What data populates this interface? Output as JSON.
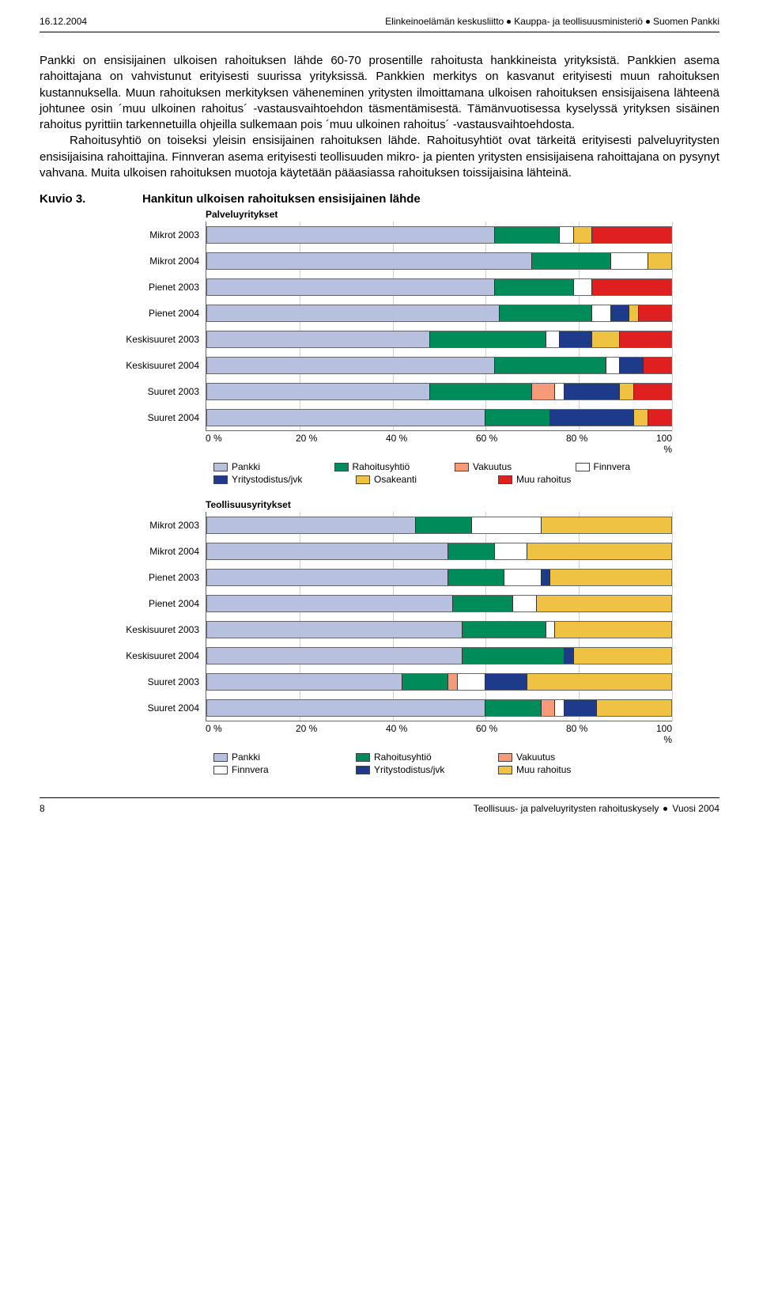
{
  "header": {
    "date": "16.12.2004",
    "orgs": [
      "Elinkeinoelämän keskusliitto",
      "Kauppa- ja teollisuusministeriö",
      "Suomen Pankki"
    ]
  },
  "body": {
    "p1": "Pankki on ensisijainen ulkoisen rahoituksen lähde 60-70 prosentille rahoitusta hankkineista yrityksistä. Pankkien asema rahoittajana on vahvistunut erityisesti suurissa yrityksissä. Pankkien merkitys on kasvanut erityisesti muun rahoituksen kustannuksella. Muun rahoituksen merkityksen väheneminen yritysten ilmoittamana ulkoisen rahoituksen ensisijaisena lähteenä johtunee osin ´muu ulkoinen rahoitus´ -vastausvaihtoehdon täsmentämisestä. Tämänvuotisessa kyselyssä yrityksen sisäinen rahoitus pyrittiin tarkennetuilla ohjeilla sulkemaan pois ´muu ulkoinen rahoitus´ -vastausvaihtoehdosta.",
    "p2": "Rahoitusyhtiö on toiseksi yleisin ensisijainen rahoituksen lähde. Rahoitusyhtiöt ovat tärkeitä erityisesti palveluyritysten ensisijaisina rahoittajina. Finnveran asema erityisesti teollisuuden mikro- ja pienten yritysten ensisijaisena rahoittajana on pysynyt vahvana. Muita ulkoisen rahoituksen muotoja käytetään pääasiassa rahoituksen toissijaisina lähteinä."
  },
  "kuvio": {
    "label": "Kuvio  3.",
    "title": "Hankitun ulkoisen rahoituksen ensisijainen lähde"
  },
  "colors": {
    "pankki": "#b8c0e0",
    "rahoitusyhtio": "#008c5a",
    "vakuutus": "#f59b7a",
    "finnvera": "#ffffff",
    "yritystodistus": "#1e3a8a",
    "osakeanti": "#f0c244",
    "muu": "#e02020",
    "grid": "#d0d0d0",
    "border": "#555555"
  },
  "categories": [
    "Mikrot 2003",
    "Mikrot 2004",
    "Pienet 2003",
    "Pienet 2004",
    "Keskisuuret 2003",
    "Keskisuuret 2004",
    "Suuret 2003",
    "Suuret 2004"
  ],
  "xticks": [
    "0 %",
    "20 %",
    "40 %",
    "60 %",
    "80 %",
    "100 %"
  ],
  "chart1": {
    "subtitle": "Palveluyritykset",
    "legend_order": [
      "pankki",
      "rahoitusyhtio",
      "vakuutus",
      "finnvera",
      "yritystodistus",
      "osakeanti",
      "muu"
    ],
    "legend_rows": [
      [
        {
          "k": "pankki",
          "l": "Pankki"
        },
        {
          "k": "rahoitusyhtio",
          "l": "Rahoitusyhtiö"
        },
        {
          "k": "vakuutus",
          "l": "Vakuutus"
        },
        {
          "k": "finnvera",
          "l": "Finnvera"
        }
      ],
      [
        {
          "k": "yritystodistus",
          "l": "Yritystodistus/jvk"
        },
        {
          "k": "osakeanti",
          "l": "Osakeanti"
        },
        {
          "k": "muu",
          "l": "Muu rahoitus"
        }
      ]
    ],
    "rows": [
      {
        "pankki": 62,
        "rahoitusyhtio": 14,
        "vakuutus": 0,
        "finnvera": 3,
        "yritystodistus": 0,
        "osakeanti": 4,
        "muu": 17
      },
      {
        "pankki": 70,
        "rahoitusyhtio": 17,
        "vakuutus": 0,
        "finnvera": 8,
        "yritystodistus": 0,
        "osakeanti": 5,
        "muu": 0
      },
      {
        "pankki": 62,
        "rahoitusyhtio": 17,
        "vakuutus": 0,
        "finnvera": 4,
        "yritystodistus": 0,
        "osakeanti": 0,
        "muu": 17
      },
      {
        "pankki": 63,
        "rahoitusyhtio": 20,
        "vakuutus": 0,
        "finnvera": 4,
        "yritystodistus": 4,
        "osakeanti": 2,
        "muu": 7
      },
      {
        "pankki": 48,
        "rahoitusyhtio": 25,
        "vakuutus": 0,
        "finnvera": 3,
        "yritystodistus": 7,
        "osakeanti": 6,
        "muu": 11
      },
      {
        "pankki": 62,
        "rahoitusyhtio": 24,
        "vakuutus": 0,
        "finnvera": 3,
        "yritystodistus": 5,
        "osakeanti": 0,
        "muu": 6
      },
      {
        "pankki": 48,
        "rahoitusyhtio": 22,
        "vakuutus": 5,
        "finnvera": 2,
        "yritystodistus": 12,
        "osakeanti": 3,
        "muu": 8
      },
      {
        "pankki": 60,
        "rahoitusyhtio": 14,
        "vakuutus": 0,
        "finnvera": 0,
        "yritystodistus": 18,
        "osakeanti": 3,
        "muu": 5
      }
    ]
  },
  "chart2": {
    "subtitle": "Teollisuusyritykset",
    "legend_order": [
      "pankki",
      "rahoitusyhtio",
      "vakuutus",
      "finnvera",
      "yritystodistus",
      "osakeanti"
    ],
    "legend_rows": [
      [
        {
          "k": "pankki",
          "l": "Pankki"
        },
        {
          "k": "rahoitusyhtio",
          "l": "Rahoitusyhtiö"
        },
        {
          "k": "vakuutus",
          "l": "Vakuutus"
        }
      ],
      [
        {
          "k": "finnvera",
          "l": "Finnvera"
        },
        {
          "k": "yritystodistus",
          "l": "Yritystodistus/jvk"
        },
        {
          "k": "osakeanti",
          "l": "Muu rahoitus"
        }
      ]
    ],
    "rows": [
      {
        "pankki": 45,
        "rahoitusyhtio": 12,
        "vakuutus": 0,
        "finnvera": 15,
        "yritystodistus": 0,
        "osakeanti": 28
      },
      {
        "pankki": 52,
        "rahoitusyhtio": 10,
        "vakuutus": 0,
        "finnvera": 7,
        "yritystodistus": 0,
        "osakeanti": 31
      },
      {
        "pankki": 52,
        "rahoitusyhtio": 12,
        "vakuutus": 0,
        "finnvera": 8,
        "yritystodistus": 2,
        "osakeanti": 26
      },
      {
        "pankki": 53,
        "rahoitusyhtio": 13,
        "vakuutus": 0,
        "finnvera": 5,
        "yritystodistus": 0,
        "osakeanti": 29
      },
      {
        "pankki": 55,
        "rahoitusyhtio": 18,
        "vakuutus": 0,
        "finnvera": 2,
        "yritystodistus": 0,
        "osakeanti": 25
      },
      {
        "pankki": 55,
        "rahoitusyhtio": 22,
        "vakuutus": 0,
        "finnvera": 0,
        "yritystodistus": 2,
        "osakeanti": 21
      },
      {
        "pankki": 42,
        "rahoitusyhtio": 10,
        "vakuutus": 2,
        "finnvera": 6,
        "yritystodistus": 9,
        "osakeanti": 31
      },
      {
        "pankki": 60,
        "rahoitusyhtio": 12,
        "vakuutus": 3,
        "finnvera": 2,
        "yritystodistus": 7,
        "osakeanti": 16
      }
    ]
  },
  "footer": {
    "page": "8",
    "text": "Teollisuus- ja palveluyritysten rahoituskysely",
    "year": "Vuosi 2004"
  }
}
